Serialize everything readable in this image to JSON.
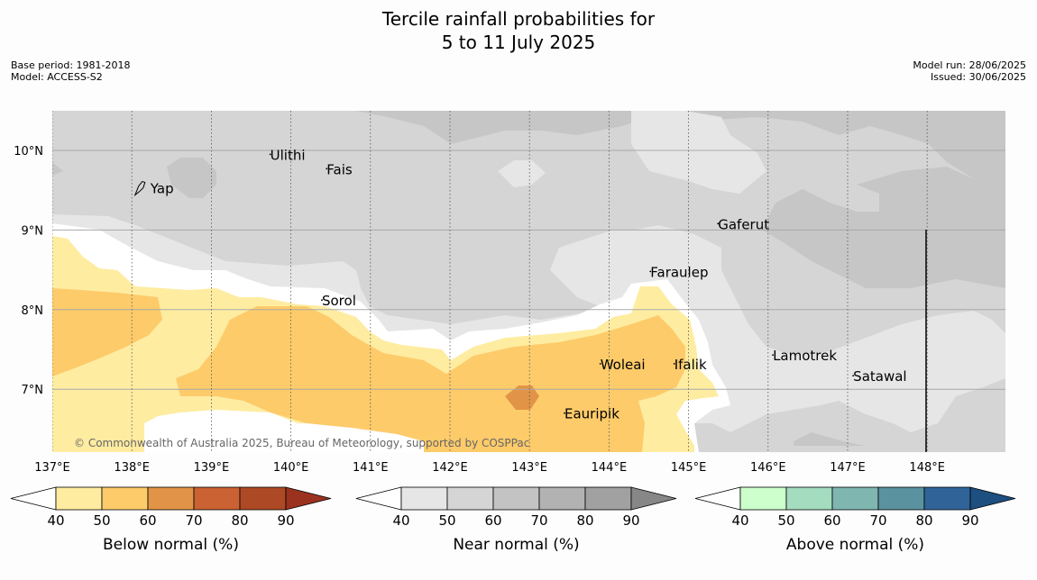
{
  "title_line1": "Tercile rainfall probabilities for",
  "title_line2": "5 to 11 July 2025",
  "meta_left": [
    "Base period: 1981-2018",
    "Model: ACCESS-S2"
  ],
  "meta_right": [
    "Model run: 28/06/2025",
    "Issued: 30/06/2025"
  ],
  "map": {
    "lon_range": [
      137,
      149
    ],
    "lat_range": [
      6.2,
      10.5
    ],
    "lat_ticks": [
      {
        "value": 10,
        "label": "10°N"
      },
      {
        "value": 9,
        "label": "9°N"
      },
      {
        "value": 8,
        "label": "8°N"
      },
      {
        "value": 7,
        "label": "7°N"
      }
    ],
    "lon_ticks": [
      {
        "value": 137,
        "label": "137°E"
      },
      {
        "value": 138,
        "label": "138°E"
      },
      {
        "value": 139,
        "label": "139°E"
      },
      {
        "value": 140,
        "label": "140°E"
      },
      {
        "value": 141,
        "label": "141°E"
      },
      {
        "value": 142,
        "label": "142°E"
      },
      {
        "value": 143,
        "label": "143°E"
      },
      {
        "value": 144,
        "label": "144°E"
      },
      {
        "value": 145,
        "label": "145°E"
      },
      {
        "value": 146,
        "label": "146°E"
      },
      {
        "value": 147,
        "label": "147°E"
      },
      {
        "value": 148,
        "label": "148°E"
      }
    ],
    "places": [
      {
        "name": "Ulithi",
        "lon": 139.74,
        "lat": 9.95
      },
      {
        "name": "Fais",
        "lon": 140.45,
        "lat": 9.77
      },
      {
        "name": "Yap",
        "lon": 138.12,
        "lat": 9.53
      },
      {
        "name": "Gaferut",
        "lon": 145.37,
        "lat": 9.08
      },
      {
        "name": "Faraulep",
        "lon": 144.52,
        "lat": 8.48
      },
      {
        "name": "Sorol",
        "lon": 140.39,
        "lat": 8.12
      },
      {
        "name": "Lamotrek",
        "lon": 146.06,
        "lat": 7.43
      },
      {
        "name": "Woleai",
        "lon": 143.89,
        "lat": 7.32
      },
      {
        "name": "Ifalik",
        "lon": 144.82,
        "lat": 7.32
      },
      {
        "name": "Satawal",
        "lon": 147.07,
        "lat": 7.17
      },
      {
        "name": "Eauripik",
        "lon": 143.44,
        "lat": 6.7
      }
    ],
    "copyright": "© Commonwealth of Australia 2025, Bureau of Meteorology, supported by COSPPac"
  },
  "colorbars": [
    {
      "title": "Below normal (%)",
      "ticks": [
        "40",
        "50",
        "60",
        "70",
        "80",
        "90"
      ],
      "colors": [
        "#ffffff",
        "#feeca1",
        "#fdcb6a",
        "#e19447",
        "#cb6233",
        "#ad4924",
        "#9b3220"
      ]
    },
    {
      "title": "Near normal (%)",
      "ticks": [
        "40",
        "50",
        "60",
        "70",
        "80",
        "90"
      ],
      "colors": [
        "#ffffff",
        "#e6e6e6",
        "#d5d5d5",
        "#c3c3c3",
        "#b2b2b2",
        "#a1a1a1",
        "#878787"
      ]
    },
    {
      "title": "Above normal (%)",
      "ticks": [
        "40",
        "50",
        "60",
        "70",
        "80",
        "90"
      ],
      "colors": [
        "#ffffff",
        "#ccffcc",
        "#a4dcc0",
        "#80b6b0",
        "#5a92a0",
        "#306498",
        "#1d4f80"
      ]
    }
  ],
  "fill_colors": {
    "near_40": "#e6e6e6",
    "near_50": "#d5d5d5",
    "near_60": "#c6c6c6",
    "below_40": "#feeca1",
    "below_50": "#fdcb6a",
    "below_60": "#e19447",
    "white": "#ffffff"
  }
}
